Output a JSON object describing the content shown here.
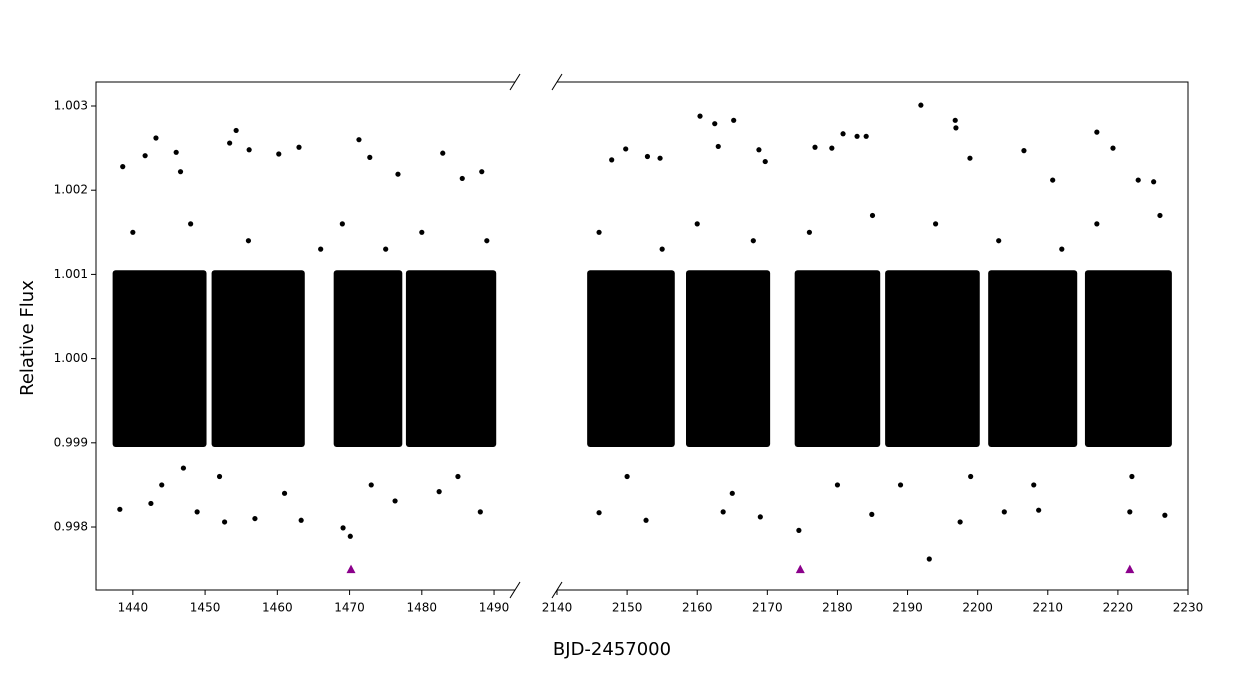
{
  "chart_data": [
    {
      "type": "scatter",
      "ylabel": "Relative Flux",
      "xlabel": "BJD-2457000",
      "xlim": [
        1434.9,
        1492.9
      ],
      "xticks": [
        1440,
        1450,
        1460,
        1470,
        1480,
        1490
      ],
      "ylim": [
        0.997252,
        1.003285
      ],
      "yticks": [
        0.998,
        0.999,
        {
          "value": 1,
          "label": "1.000"
        },
        1.001,
        1.002,
        1.003
      ],
      "color": "#000000",
      "blocks": [
        {
          "x": [
            1437.2,
            1450.2
          ],
          "values": [
            0.99895,
            1.00105
          ]
        },
        {
          "x": [
            1450.9,
            1463.8
          ],
          "values": [
            0.99895,
            1.00105
          ]
        },
        {
          "x": [
            1467.8,
            1477.3
          ],
          "values": [
            0.99895,
            1.00105
          ]
        },
        {
          "x": [
            1477.8,
            1490.3
          ],
          "values": [
            0.99895,
            1.00105
          ]
        }
      ],
      "x": [
        1438.6,
        1441.7,
        1443.2,
        1446.0,
        1446.6,
        1438.2,
        1442.5,
        1448.9,
        1452.7,
        1453.4,
        1454.3,
        1456.9,
        1456.1,
        1460.2,
        1463.0,
        1463.3,
        1471.3,
        1470.1,
        1472.8,
        1482.9,
        1488.1,
        1488.3,
        1485.6,
        1476.7,
        1469.1,
        1476.3,
        1482.4,
        1440,
        1444,
        1448,
        1452,
        1456,
        1461,
        1469,
        1473,
        1475,
        1480,
        1485,
        1489,
        1466,
        1447
      ],
      "values": [
        1.00228,
        1.00241,
        1.00262,
        1.00245,
        1.00222,
        0.99821,
        0.99828,
        0.99818,
        0.99806,
        1.00256,
        1.00271,
        0.9981,
        1.00248,
        1.00243,
        1.00251,
        0.99808,
        1.0026,
        0.99789,
        1.00239,
        1.00244,
        0.99818,
        1.00222,
        1.00214,
        1.00219,
        0.99799,
        0.99831,
        0.99842,
        1.0015,
        0.9985,
        1.0016,
        0.9986,
        1.0014,
        0.9984,
        1.0016,
        0.9985,
        1.0013,
        1.0015,
        0.9986,
        1.0014,
        1.0013,
        0.9987
      ],
      "markers": {
        "color": "#8b008b",
        "x": [
          1470.2
        ],
        "values": [
          0.9975
        ]
      }
    },
    {
      "type": "scatter",
      "xlim": [
        2140,
        2230
      ],
      "xticks": [
        2140,
        2150,
        2160,
        2170,
        2180,
        2190,
        2200,
        2210,
        2220,
        2230
      ],
      "ylim": [
        0.997252,
        1.003285
      ],
      "color": "#000000",
      "blocks": [
        {
          "x": [
            2144.3,
            2156.8
          ],
          "values": [
            0.99895,
            1.00105
          ]
        },
        {
          "x": [
            2158.4,
            2170.4
          ],
          "values": [
            0.99895,
            1.00105
          ]
        },
        {
          "x": [
            2173.9,
            2186.1
          ],
          "values": [
            0.99895,
            1.00105
          ]
        },
        {
          "x": [
            2186.8,
            2200.3
          ],
          "values": [
            0.99895,
            1.00105
          ]
        },
        {
          "x": [
            2201.5,
            2214.2
          ],
          "values": [
            0.99895,
            1.00105
          ]
        },
        {
          "x": [
            2215.3,
            2227.7
          ],
          "values": [
            0.99895,
            1.00105
          ]
        }
      ],
      "x": [
        2147.8,
        2149.8,
        2152.9,
        2154.7,
        2160.4,
        2162.5,
        2163.0,
        2165.2,
        2168.8,
        2169.7,
        2146.0,
        2152.7,
        2163.7,
        2169.0,
        2174.5,
        2176.8,
        2179.2,
        2180.8,
        2182.8,
        2184.1,
        2184.9,
        2191.9,
        2193.1,
        2196.8,
        2196.9,
        2197.5,
        2198.9,
        2206.6,
        2210.7,
        2203.8,
        2208.7,
        2217.0,
        2219.3,
        2221.7,
        2226.7,
        2222.9,
        2225.1,
        2146,
        2150,
        2155,
        2160,
        2165,
        2168,
        2176,
        2180,
        2185,
        2189,
        2194,
        2199,
        2203,
        2208,
        2212,
        2217,
        2222,
        2226
      ],
      "values": [
        1.00236,
        1.00249,
        1.0024,
        1.00238,
        1.00288,
        1.00279,
        1.00252,
        1.00283,
        1.00248,
        1.00234,
        0.99817,
        0.99808,
        0.99818,
        0.99812,
        0.99796,
        1.00251,
        1.0025,
        1.00267,
        1.00264,
        1.00264,
        0.99815,
        1.00301,
        0.99762,
        1.00283,
        1.00274,
        0.99806,
        1.00238,
        1.00247,
        1.00212,
        0.99818,
        0.9982,
        1.00269,
        1.0025,
        0.99818,
        0.99814,
        1.00212,
        1.0021,
        1.0015,
        0.9986,
        1.0013,
        1.0016,
        0.9984,
        1.0014,
        1.0015,
        0.9985,
        1.0017,
        0.9985,
        1.0016,
        0.9986,
        1.0014,
        0.9985,
        1.0013,
        1.0016,
        0.9986,
        1.0017
      ],
      "markers": {
        "color": "#8b008b",
        "x": [
          2174.7,
          2221.7
        ],
        "values": [
          0.9975,
          0.9975
        ]
      }
    }
  ]
}
